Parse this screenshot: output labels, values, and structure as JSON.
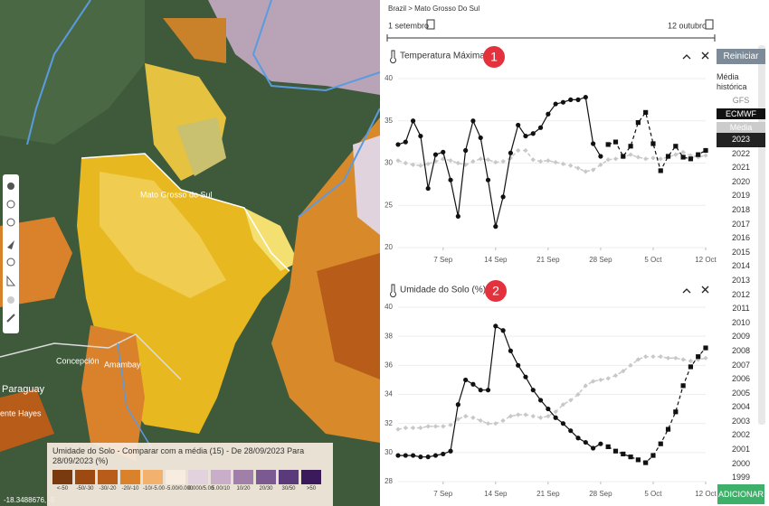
{
  "map": {
    "labels": [
      "Mato Grosso do Sul",
      "Concepción",
      "Amambay",
      "Paraguay",
      "ente Hayes"
    ],
    "coordinates": "-18.3488676, -5",
    "legend": {
      "title": "Umidade do Solo - Comparar com a média (15) - De 28/09/2023 Para 28/09/2023 (%)",
      "classes": [
        {
          "label": "<-50",
          "color": "#7a3a10"
        },
        {
          "label": "-50/-30",
          "color": "#9c4a12"
        },
        {
          "label": "-30/-20",
          "color": "#b85c1a"
        },
        {
          "label": "-20/-10",
          "color": "#d9822b"
        },
        {
          "label": "-10/-5.00",
          "color": "#f2b26e"
        },
        {
          "label": "-5.00/0.000",
          "color": "#f8ece0"
        },
        {
          "label": "0.000/5.00",
          "color": "#e2d2de"
        },
        {
          "label": "5.00/10",
          "color": "#c8aec8"
        },
        {
          "label": "10/20",
          "color": "#a080a8"
        },
        {
          "label": "20/30",
          "color": "#7a5a90"
        },
        {
          "label": "30/50",
          "color": "#5a3a7a"
        },
        {
          "label": ">50",
          "color": "#3a1a5a"
        }
      ]
    }
  },
  "breadcrumb": "Brazil > Mato Grosso Do Sul",
  "date_start": "1 setembro",
  "date_end": "12 outubro",
  "sidebar": {
    "reset": "Reiniciar",
    "historic": "Média histórica",
    "models": [
      "GFS",
      "ECMWF",
      "Média"
    ],
    "years": [
      2023,
      2022,
      2021,
      2020,
      2019,
      2018,
      2017,
      2016,
      2015,
      2014,
      2013,
      2012,
      2011,
      2010,
      2009,
      2008,
      2007,
      2006,
      2005,
      2004,
      2003,
      2002,
      2001,
      2000,
      1999
    ],
    "add": "ADICIONAR"
  },
  "chart_data": [
    {
      "type": "line",
      "title": "Temperatura Máxima (°C)",
      "badge": "1",
      "x": [
        1,
        2,
        3,
        4,
        5,
        6,
        7,
        8,
        9,
        10,
        11,
        12,
        13,
        14,
        15,
        16,
        17,
        18,
        19,
        20,
        21,
        22,
        23,
        24,
        25,
        26,
        27,
        28,
        29,
        30,
        31,
        32,
        33,
        34,
        35,
        36,
        37,
        38,
        39,
        40,
        41,
        42
      ],
      "xlim": [
        1,
        42
      ],
      "xticks": [
        {
          "value": 7,
          "label": "7 Sep"
        },
        {
          "value": 14,
          "label": "14 Sep"
        },
        {
          "value": 21,
          "label": "21 Sep"
        },
        {
          "value": 28,
          "label": "28 Sep"
        },
        {
          "value": 35,
          "label": "5 Oct"
        },
        {
          "value": 42,
          "label": "12 Oct"
        }
      ],
      "ylim": [
        20,
        40
      ],
      "yticks": [
        20,
        25,
        30,
        35,
        40
      ],
      "grid": true,
      "series": [
        {
          "color": "#c8c8c8",
          "style": "dashed",
          "marker": "diamond",
          "values": [
            30.3,
            30,
            29.8,
            29.7,
            29.9,
            30.2,
            30.5,
            30.3,
            30,
            29.8,
            30.2,
            30.5,
            30.4,
            30.1,
            30.2,
            30.6,
            31.5,
            31.5,
            30.4,
            30.2,
            30.3,
            30.1,
            29.9,
            29.7,
            29.4,
            29.0,
            29.2,
            29.8,
            30.4,
            30.5,
            30.7,
            31,
            30.7,
            30.5,
            30.6,
            30.5,
            30.7,
            31,
            31.3,
            30.9,
            30.7,
            30.9
          ]
        },
        {
          "color": "#111111",
          "style": "solid",
          "marker": "circle",
          "values": [
            32.2,
            32.5,
            35,
            33.2,
            27,
            31,
            31.3,
            28,
            23.7,
            31.5,
            35,
            33,
            28,
            22.5,
            26,
            31.2,
            34.5,
            33.2,
            33.5,
            34.2,
            35.8,
            37,
            37.2,
            37.5,
            37.5,
            37.8,
            32.3,
            30.8,
            null,
            null,
            null,
            null,
            null,
            null,
            null,
            null,
            null,
            null,
            null,
            null,
            null,
            null
          ]
        },
        {
          "color": "#111111",
          "style": "dashed",
          "marker": "square",
          "values": [
            null,
            null,
            null,
            null,
            null,
            null,
            null,
            null,
            null,
            null,
            null,
            null,
            null,
            null,
            null,
            null,
            null,
            null,
            null,
            null,
            null,
            null,
            null,
            null,
            null,
            null,
            null,
            null,
            32.2,
            32.5,
            30.8,
            32,
            34.8,
            36,
            32.3,
            29.1,
            30.8,
            32,
            30.7,
            30.5,
            31,
            31.5
          ]
        }
      ]
    },
    {
      "type": "line",
      "title": "Umidade do Solo (%)",
      "badge": "2",
      "x": [
        1,
        2,
        3,
        4,
        5,
        6,
        7,
        8,
        9,
        10,
        11,
        12,
        13,
        14,
        15,
        16,
        17,
        18,
        19,
        20,
        21,
        22,
        23,
        24,
        25,
        26,
        27,
        28,
        29,
        30,
        31,
        32,
        33,
        34,
        35,
        36,
        37,
        38,
        39,
        40,
        41,
        42
      ],
      "xlim": [
        1,
        42
      ],
      "xticks": [
        {
          "value": 7,
          "label": "7 Sep"
        },
        {
          "value": 14,
          "label": "14 Sep"
        },
        {
          "value": 21,
          "label": "21 Sep"
        },
        {
          "value": 28,
          "label": "28 Sep"
        },
        {
          "value": 35,
          "label": "5 Oct"
        },
        {
          "value": 42,
          "label": "12 Oct"
        }
      ],
      "ylim": [
        28,
        40
      ],
      "yticks": [
        28,
        30,
        32,
        34,
        36,
        38,
        40
      ],
      "grid": true,
      "series": [
        {
          "color": "#c8c8c8",
          "style": "dashed",
          "marker": "diamond",
          "values": [
            31.6,
            31.7,
            31.7,
            31.7,
            31.8,
            31.8,
            31.8,
            31.9,
            32.3,
            32.5,
            32.4,
            32.2,
            32.0,
            32.0,
            32.2,
            32.5,
            32.6,
            32.6,
            32.5,
            32.4,
            32.5,
            32.8,
            33.3,
            33.6,
            34,
            34.6,
            34.9,
            35,
            35.1,
            35.3,
            35.6,
            36,
            36.4,
            36.6,
            36.6,
            36.6,
            36.5,
            36.5,
            36.4,
            36.3,
            36.4,
            36.5
          ]
        },
        {
          "color": "#111111",
          "style": "solid",
          "marker": "circle",
          "values": [
            29.8,
            29.8,
            29.8,
            29.7,
            29.7,
            29.8,
            29.9,
            30.1,
            33.3,
            35,
            34.7,
            34.3,
            34.3,
            38.7,
            38.4,
            37,
            36,
            35.2,
            34.3,
            33.6,
            33,
            32.4,
            32,
            31.5,
            31,
            30.7,
            30.3,
            30.6,
            null,
            null,
            null,
            null,
            null,
            null,
            null,
            null,
            null,
            null,
            null,
            null,
            null,
            null
          ]
        },
        {
          "color": "#111111",
          "style": "dashed",
          "marker": "square",
          "values": [
            null,
            null,
            null,
            null,
            null,
            null,
            null,
            null,
            null,
            null,
            null,
            null,
            null,
            null,
            null,
            null,
            null,
            null,
            null,
            null,
            null,
            null,
            null,
            null,
            null,
            null,
            null,
            null,
            30.4,
            30.1,
            29.9,
            29.7,
            29.5,
            29.3,
            29.8,
            30.6,
            31.6,
            32.8,
            34.6,
            35.9,
            36.6,
            37.2
          ]
        }
      ]
    }
  ]
}
